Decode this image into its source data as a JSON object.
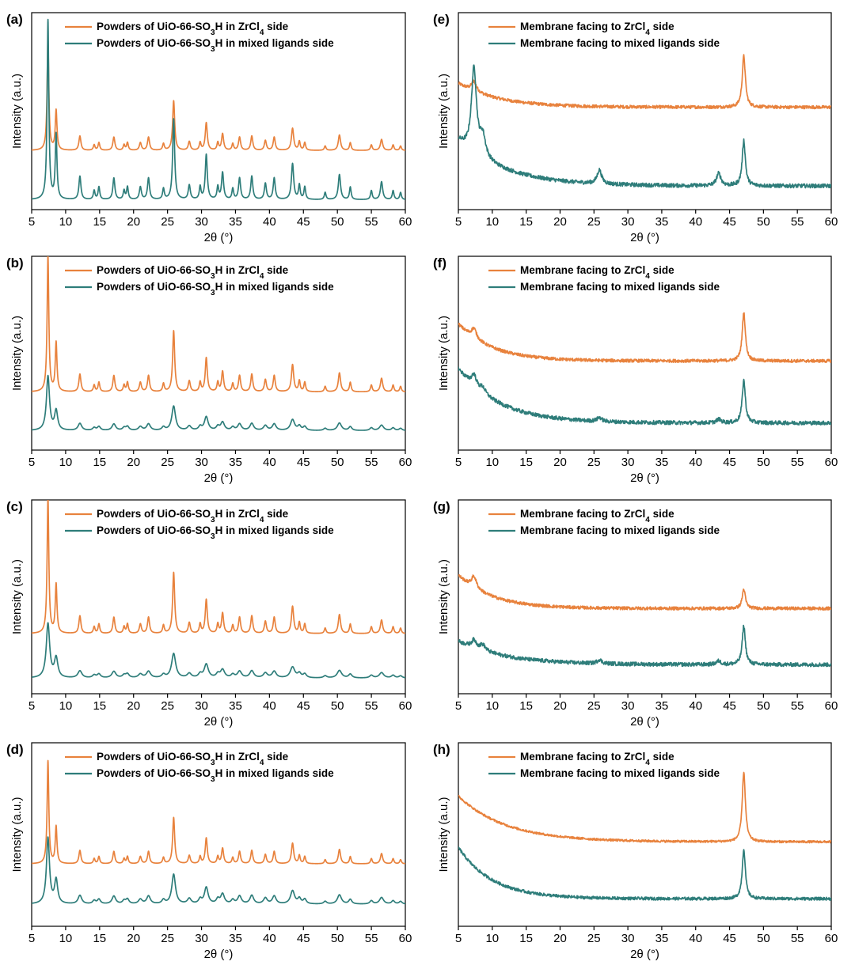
{
  "figure": {
    "colors": {
      "orange": "#E8823D",
      "teal": "#2E7D7A"
    },
    "xlabel": "2θ (°)",
    "ylabel": "Intensity (a.u.)",
    "x_ticks": [
      5,
      10,
      15,
      20,
      25,
      30,
      35,
      40,
      45,
      50,
      55,
      60
    ]
  },
  "chart_data": [
    {
      "panel": "(a)",
      "type": "line",
      "kind": "powder",
      "xlabel": "2θ (°)",
      "ylabel": "Intensity (a.u.)",
      "xlim": [
        5,
        60
      ],
      "grid": false,
      "legend_position": "top",
      "series": [
        {
          "name": "Powders of UiO-66-SO3H in ZrCl4 side",
          "color": "#E8823D",
          "baseline": 0.3,
          "peak_scale": 0.56,
          "broadening": 1.0,
          "noise": 0.0
        },
        {
          "name": "Powders of UiO-66-SO3H in mixed ligands side",
          "color": "#2E7D7A",
          "baseline": 0.05,
          "peak_scale": 0.91,
          "broadening": 1.0,
          "noise": 0.0
        }
      ]
    },
    {
      "panel": "(b)",
      "type": "line",
      "kind": "powder",
      "xlabel": "2θ (°)",
      "ylabel": "Intensity (a.u.)",
      "xlim": [
        5,
        60
      ],
      "grid": false,
      "legend_position": "top",
      "series": [
        {
          "name": "Powders of UiO-66-SO3H in ZrCl4 side",
          "color": "#E8823D",
          "baseline": 0.3,
          "peak_scale": 0.7,
          "broadening": 1.0,
          "noise": 0.0
        },
        {
          "name": "Powders of UiO-66-SO3H in mixed ligands side",
          "color": "#2E7D7A",
          "baseline": 0.1,
          "peak_scale": 0.28,
          "broadening": 1.8,
          "noise": 0.0
        }
      ]
    },
    {
      "panel": "(c)",
      "type": "line",
      "kind": "powder",
      "xlabel": "2θ (°)",
      "ylabel": "Intensity (a.u.)",
      "xlim": [
        5,
        60
      ],
      "grid": false,
      "legend_position": "top",
      "series": [
        {
          "name": "Powders of UiO-66-SO3H in ZrCl4 side",
          "color": "#E8823D",
          "baseline": 0.31,
          "peak_scale": 0.7,
          "broadening": 1.0,
          "noise": 0.0
        },
        {
          "name": "Powders of UiO-66-SO3H in mixed ligands side",
          "color": "#2E7D7A",
          "baseline": 0.08,
          "peak_scale": 0.28,
          "broadening": 2.0,
          "noise": 0.0
        }
      ]
    },
    {
      "panel": "(d)",
      "type": "line",
      "kind": "powder",
      "xlabel": "2θ (°)",
      "ylabel": "Intensity (a.u.)",
      "xlim": [
        5,
        60
      ],
      "grid": false,
      "legend_position": "top",
      "series": [
        {
          "name": "Powders of UiO-66-SO3H in ZrCl4 side",
          "color": "#E8823D",
          "baseline": 0.34,
          "peak_scale": 0.56,
          "broadening": 1.0,
          "noise": 0.0
        },
        {
          "name": "Powders of UiO-66-SO3H in mixed ligands side",
          "color": "#2E7D7A",
          "baseline": 0.12,
          "peak_scale": 0.36,
          "broadening": 1.8,
          "noise": 0.0
        }
      ]
    },
    {
      "panel": "(e)",
      "type": "line",
      "kind": "membrane",
      "xlabel": "2θ (°)",
      "ylabel": "Intensity (a.u.)",
      "xlim": [
        5,
        60
      ],
      "grid": false,
      "legend_position": "top",
      "series": [
        {
          "name": "Membrane facing to ZrCl4 side",
          "color": "#E8823D",
          "baseline": 0.52,
          "start_excess": 0.12,
          "decay": 6,
          "peak_47": 0.26,
          "peak_7": 0.05,
          "minor_peaks": 0.0,
          "noise": 0.008
        },
        {
          "name": "Membrane facing to mixed ligands side",
          "color": "#2E7D7A",
          "baseline": 0.12,
          "start_excess": 0.23,
          "decay": 7,
          "peak_47": 0.23,
          "peak_7": 0.43,
          "minor_peaks": 0.07,
          "noise": 0.01
        }
      ]
    },
    {
      "panel": "(f)",
      "type": "line",
      "kind": "membrane",
      "xlabel": "2θ (°)",
      "ylabel": "Intensity (a.u.)",
      "xlim": [
        5,
        60
      ],
      "grid": false,
      "legend_position": "top",
      "series": [
        {
          "name": "Membrane facing to ZrCl4 side",
          "color": "#E8823D",
          "baseline": 0.46,
          "start_excess": 0.19,
          "decay": 5,
          "peak_47": 0.25,
          "peak_7": 0.05,
          "minor_peaks": 0.0,
          "noise": 0.008
        },
        {
          "name": "Membrane facing to mixed ligands side",
          "color": "#2E7D7A",
          "baseline": 0.14,
          "start_excess": 0.28,
          "decay": 6,
          "peak_47": 0.22,
          "peak_7": 0.06,
          "minor_peaks": 0.02,
          "noise": 0.01
        }
      ]
    },
    {
      "panel": "(g)",
      "type": "line",
      "kind": "membrane",
      "xlabel": "2θ (°)",
      "ylabel": "Intensity (a.u.)",
      "xlim": [
        5,
        60
      ],
      "grid": false,
      "legend_position": "top",
      "series": [
        {
          "name": "Membrane facing to ZrCl4 side",
          "color": "#E8823D",
          "baseline": 0.44,
          "start_excess": 0.17,
          "decay": 5,
          "peak_47": 0.1,
          "peak_7": 0.06,
          "minor_peaks": 0.0,
          "noise": 0.008
        },
        {
          "name": "Membrane facing to mixed ligands side",
          "color": "#2E7D7A",
          "baseline": 0.15,
          "start_excess": 0.12,
          "decay": 7,
          "peak_47": 0.2,
          "peak_7": 0.04,
          "minor_peaks": 0.02,
          "noise": 0.01
        }
      ]
    },
    {
      "panel": "(h)",
      "type": "line",
      "kind": "membrane",
      "xlabel": "2θ (°)",
      "ylabel": "Intensity (a.u.)",
      "xlim": [
        5,
        60
      ],
      "grid": false,
      "legend_position": "top",
      "series": [
        {
          "name": "Membrane facing to ZrCl4 side",
          "color": "#E8823D",
          "baseline": 0.46,
          "start_excess": 0.25,
          "decay": 7,
          "peak_47": 0.38,
          "peak_7": 0.0,
          "minor_peaks": 0.0,
          "noise": 0.006
        },
        {
          "name": "Membrane facing to mixed ligands side",
          "color": "#2E7D7A",
          "baseline": 0.15,
          "start_excess": 0.28,
          "decay": 5,
          "peak_47": 0.27,
          "peak_7": 0.0,
          "minor_peaks": 0.0,
          "noise": 0.008
        }
      ]
    }
  ],
  "reference_peaks": [
    [
      7.4,
      1.0,
      0.15
    ],
    [
      8.6,
      0.36,
      0.15
    ],
    [
      12.1,
      0.13,
      0.18
    ],
    [
      14.2,
      0.05,
      0.15
    ],
    [
      14.9,
      0.07,
      0.15
    ],
    [
      17.1,
      0.12,
      0.18
    ],
    [
      18.6,
      0.05,
      0.15
    ],
    [
      19.1,
      0.07,
      0.15
    ],
    [
      21.0,
      0.07,
      0.18
    ],
    [
      22.2,
      0.12,
      0.18
    ],
    [
      24.4,
      0.06,
      0.15
    ],
    [
      25.9,
      0.45,
      0.18
    ],
    [
      28.2,
      0.08,
      0.18
    ],
    [
      29.8,
      0.07,
      0.15
    ],
    [
      30.7,
      0.25,
      0.18
    ],
    [
      32.4,
      0.07,
      0.15
    ],
    [
      33.1,
      0.15,
      0.18
    ],
    [
      34.6,
      0.06,
      0.15
    ],
    [
      35.6,
      0.12,
      0.18
    ],
    [
      37.4,
      0.13,
      0.18
    ],
    [
      39.4,
      0.09,
      0.18
    ],
    [
      40.7,
      0.12,
      0.18
    ],
    [
      43.4,
      0.2,
      0.2
    ],
    [
      44.4,
      0.08,
      0.15
    ],
    [
      45.2,
      0.07,
      0.15
    ],
    [
      48.2,
      0.04,
      0.15
    ],
    [
      50.3,
      0.14,
      0.2
    ],
    [
      51.9,
      0.07,
      0.15
    ],
    [
      55.0,
      0.05,
      0.15
    ],
    [
      56.5,
      0.1,
      0.2
    ],
    [
      58.2,
      0.05,
      0.15
    ],
    [
      59.3,
      0.04,
      0.15
    ]
  ]
}
